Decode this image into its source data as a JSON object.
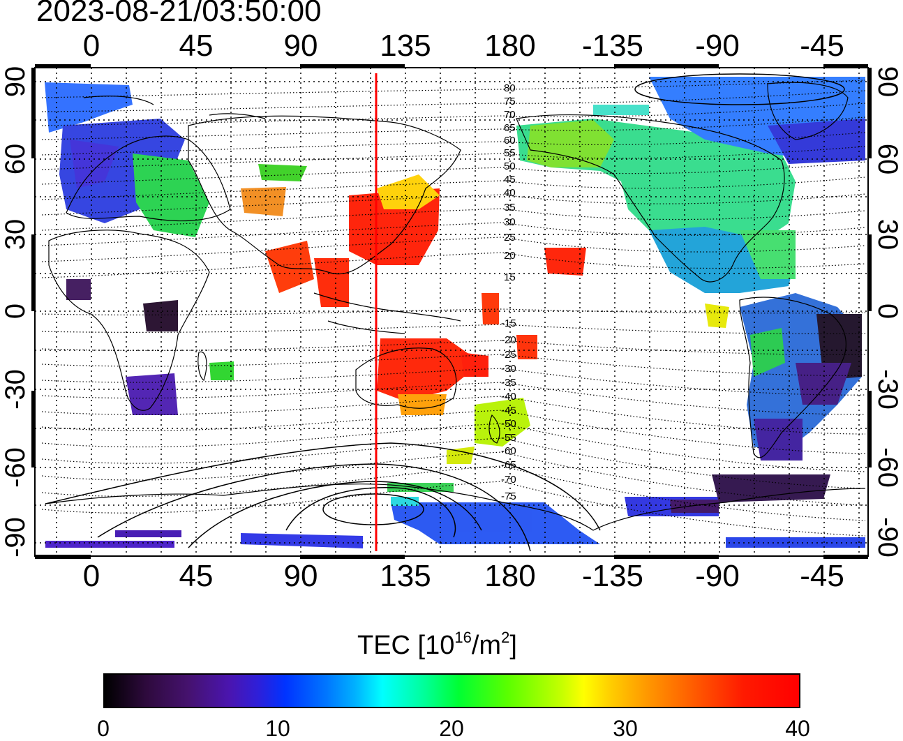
{
  "title": "2023-08-21/03:50:00",
  "x_ticks": [
    "0",
    "45",
    "90",
    "135",
    "180",
    "-135",
    "-90",
    "-45"
  ],
  "y_ticks": [
    "90",
    "60",
    "30",
    "0",
    "-30",
    "-60",
    "-90"
  ],
  "contour_labels_north": [
    "80",
    "75",
    "70",
    "65",
    "60",
    "55",
    "50",
    "45",
    "40",
    "35",
    "30",
    "25",
    "20",
    "15"
  ],
  "contour_labels_south": [
    "-15",
    "-20",
    "-25",
    "-30",
    "-35",
    "-40",
    "-45",
    "-50",
    "-55",
    "-60",
    "-65",
    "-70",
    "-75"
  ],
  "colorbar": {
    "label_main": "TEC  [10",
    "label_exp": "16",
    "label_mid": "/m",
    "label_exp2": "2",
    "label_end": "]",
    "ticks": [
      "0",
      "10",
      "20",
      "30",
      "40"
    ],
    "range": [
      0,
      40
    ]
  },
  "map": {
    "lon_range": [
      -25,
      340
    ],
    "lat_range": [
      -90,
      90
    ],
    "sun_meridian_lon": 123,
    "colors": {
      "marker_line": "#ff0000",
      "land_outline": "#000000",
      "grid": "#000000"
    }
  }
}
